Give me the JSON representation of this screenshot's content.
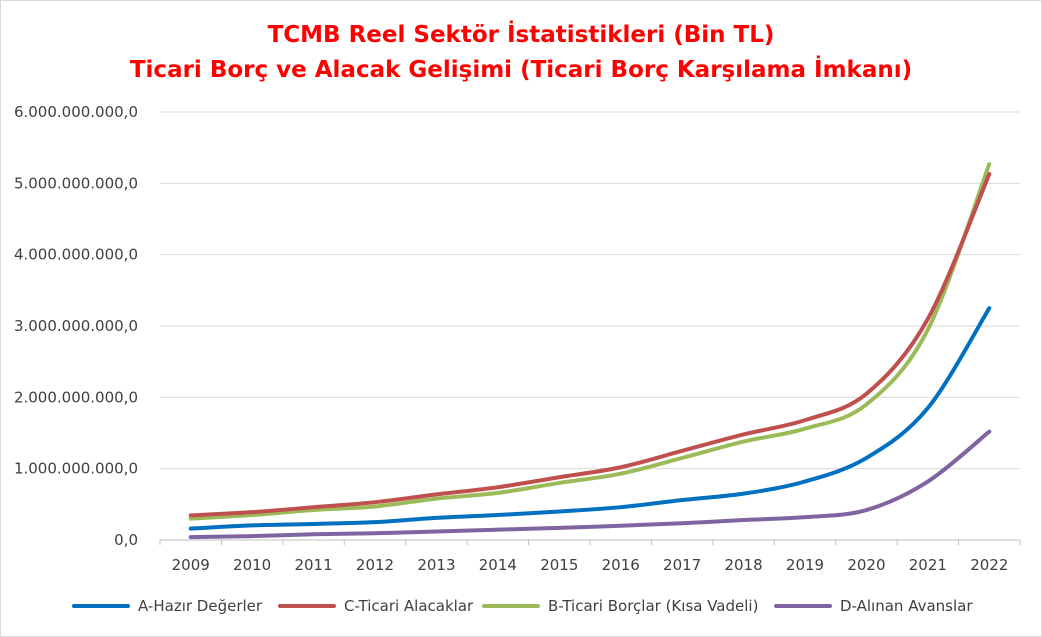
{
  "chart_data": {
    "type": "line",
    "title": "TCMB  Reel Sektör İstatistikleri (Bin TL)",
    "subtitle": "Ticari Borç ve Alacak Gelişimi (Ticari Borç Karşılama İmkanı)",
    "xlabel": "",
    "ylabel": "",
    "categories": [
      "2009",
      "2010",
      "2011",
      "2012",
      "2013",
      "2014",
      "2015",
      "2016",
      "2017",
      "2018",
      "2019",
      "2020",
      "2021",
      "2022"
    ],
    "ylim": [
      0,
      6000000000
    ],
    "yticks": [
      0,
      1000000000,
      2000000000,
      3000000000,
      4000000000,
      5000000000,
      6000000000
    ],
    "ytick_labels": [
      "0,0",
      "1.000.000.000,0",
      "2.000.000.000,0",
      "3.000.000.000,0",
      "4.000.000.000,0",
      "5.000.000.000,0",
      "6.000.000.000,0"
    ],
    "grid": true,
    "legend_position": "bottom",
    "series": [
      {
        "name": "A-Hazır Değerler",
        "color": "#0070c0",
        "values": [
          160000000,
          205000000,
          225000000,
          250000000,
          310000000,
          350000000,
          400000000,
          460000000,
          560000000,
          650000000,
          820000000,
          1150000000,
          1850000000,
          3250000000
        ]
      },
      {
        "name": "C-Ticari Alacaklar",
        "color": "#c0504d",
        "values": [
          345000000,
          390000000,
          460000000,
          530000000,
          640000000,
          740000000,
          880000000,
          1020000000,
          1250000000,
          1480000000,
          1680000000,
          2050000000,
          3100000000,
          5130000000
        ]
      },
      {
        "name": "B-Ticari Borçlar (Kısa Vadeli)",
        "color": "#9bbb59",
        "values": [
          300000000,
          350000000,
          420000000,
          470000000,
          580000000,
          660000000,
          800000000,
          930000000,
          1150000000,
          1380000000,
          1560000000,
          1900000000,
          2950000000,
          5270000000
        ]
      },
      {
        "name": "D-Alınan Avanslar",
        "color": "#8064a2",
        "values": [
          40000000,
          55000000,
          80000000,
          95000000,
          120000000,
          145000000,
          170000000,
          200000000,
          235000000,
          280000000,
          320000000,
          420000000,
          820000000,
          1520000000
        ]
      }
    ]
  }
}
